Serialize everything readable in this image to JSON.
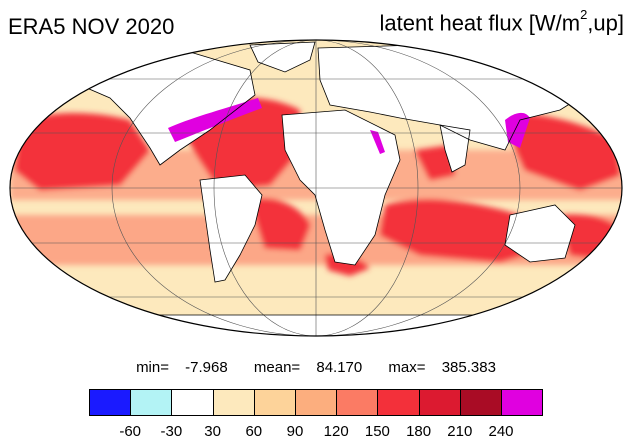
{
  "header": {
    "title_left": "ERA5 NOV 2020",
    "title_right_prefix": "latent heat flux [W/m",
    "title_right_sup": "2",
    "title_right_suffix": ",up]"
  },
  "stats": {
    "min_label": "min=",
    "min_value": "-7.968",
    "mean_label": "mean=",
    "mean_value": "84.170",
    "max_label": "max=",
    "max_value": "385.383"
  },
  "colorbar": {
    "colors": [
      "#1a1aff",
      "#b3f3f5",
      "#ffffff",
      "#fde9bd",
      "#fdd39a",
      "#fcae7e",
      "#fb7b64",
      "#f3303a",
      "#dc1a30",
      "#a90c25",
      "#e000e0"
    ],
    "ticks": [
      "-60",
      "-30",
      "30",
      "60",
      "90",
      "120",
      "150",
      "180",
      "210",
      "240"
    ]
  },
  "map": {
    "projection": "mollweide",
    "background_color": "#fde9bd",
    "ocean_mid_color": "#fb7b64",
    "ocean_high_color": "#f3303a",
    "land_color": "#ffffff",
    "peak_color": "#e000e0"
  }
}
